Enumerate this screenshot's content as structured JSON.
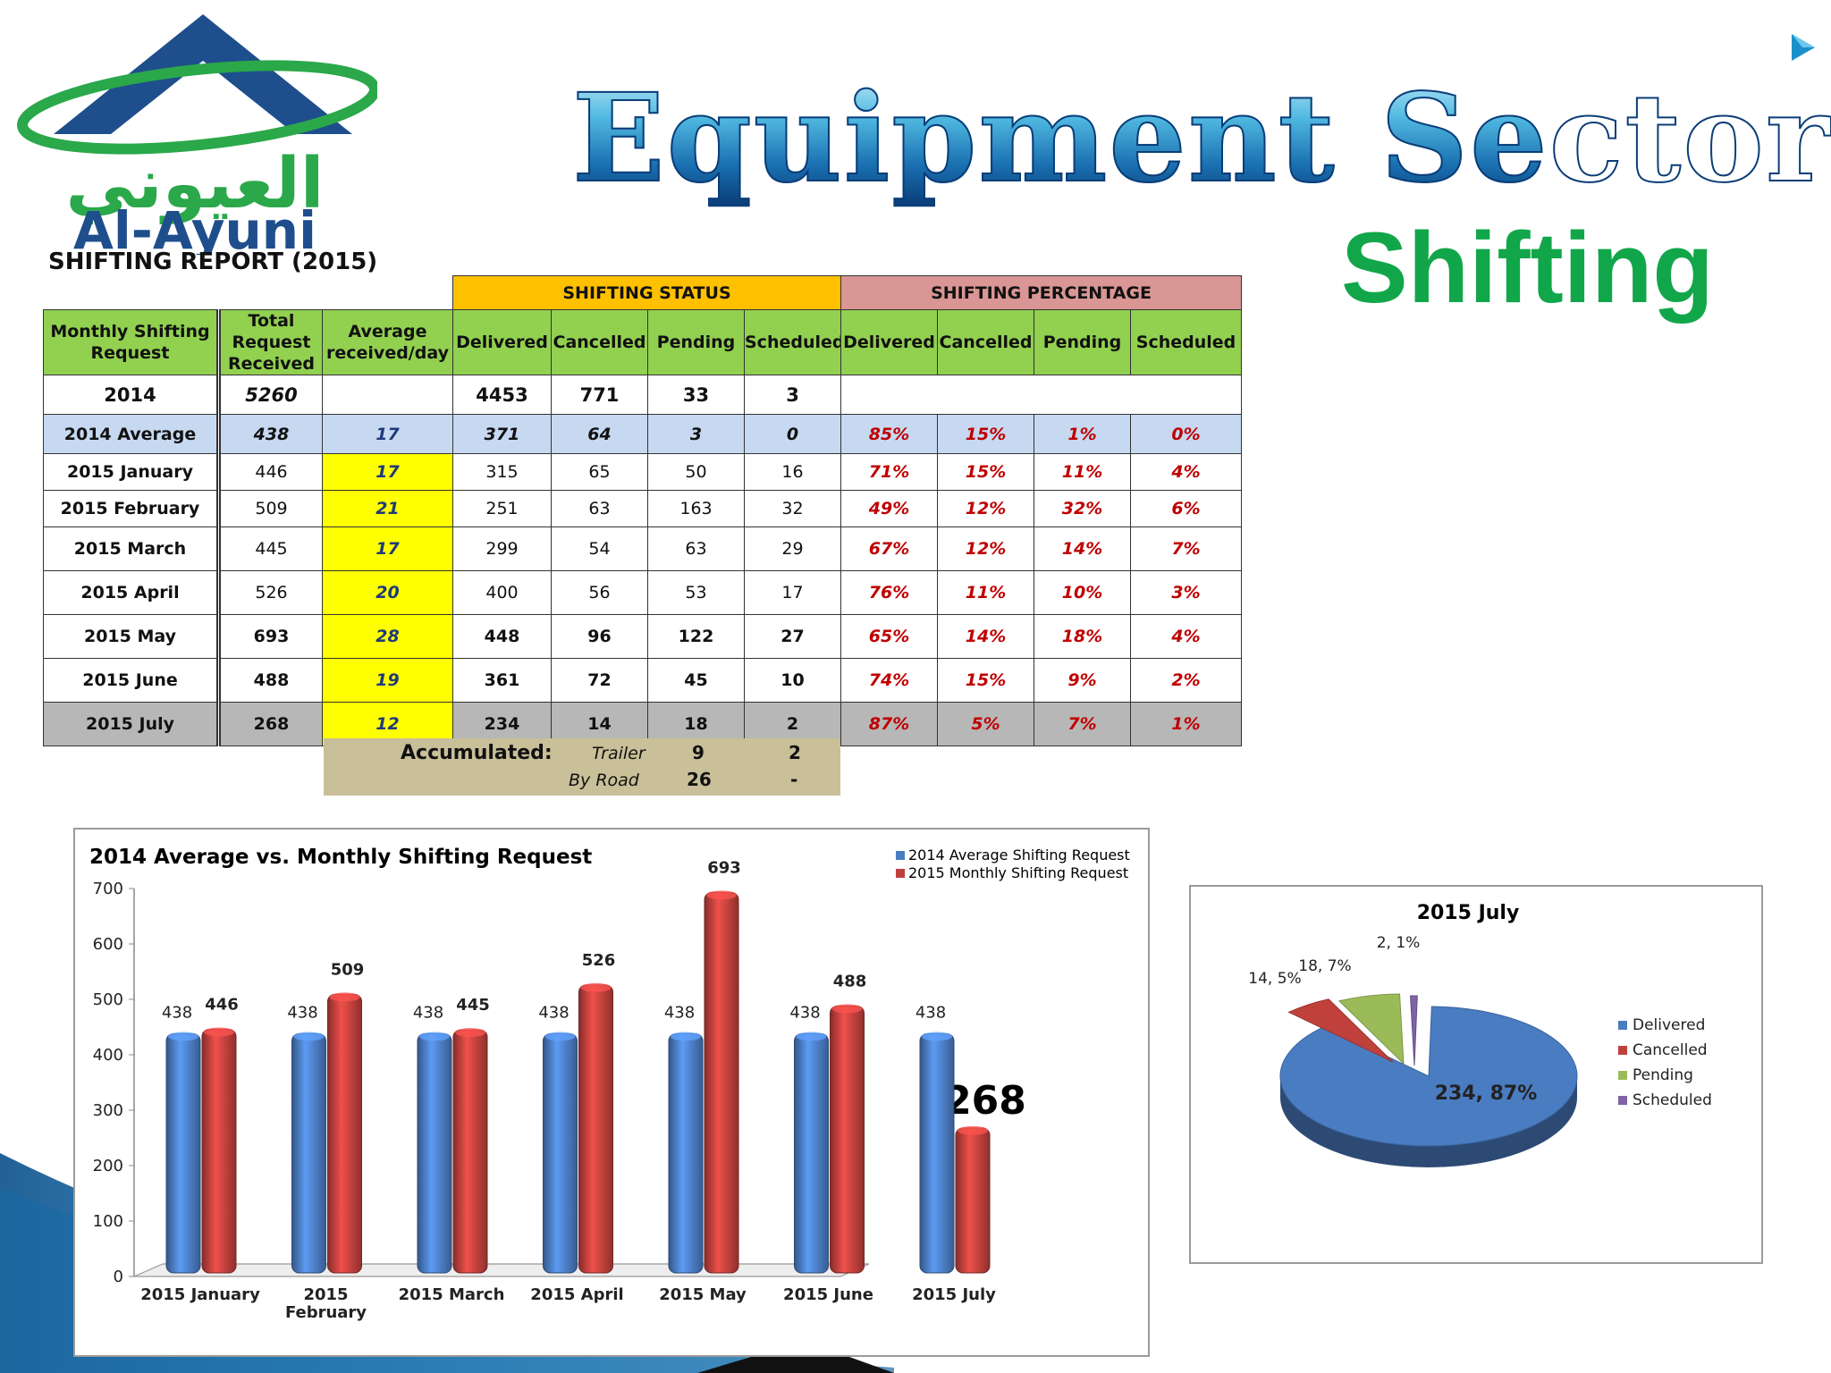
{
  "logo": {
    "arabic_text": "العيوني",
    "latin_text": "Al-Ayuni"
  },
  "title": "Equipment Sector",
  "subtitle": "Shifting",
  "report_title": "SHIFTING REPORT (2015)",
  "colors": {
    "header_green": "#92d050",
    "status_orange": "#ffc000",
    "percentage_rose": "#d99694",
    "avg_blue": "#c6d9f1",
    "highlight_yellow": "#ffff00",
    "july_gray": "#b7b7b7",
    "pct_red": "#c00000",
    "title_blue": "#1a6fb0",
    "subtitle_green": "#12a64a"
  },
  "table": {
    "group_headers": {
      "status": "SHIFTING STATUS",
      "percentage": "SHIFTING PERCENTAGE"
    },
    "col_headers": {
      "request": "Monthly Shifting Request",
      "total": "Total Request Received",
      "average": "Average received/day",
      "delivered": "Delivered",
      "cancelled": "Cancelled",
      "pending": "Pending",
      "scheduled": "Scheduled",
      "pct_delivered": "Delivered",
      "pct_cancelled": "Cancelled",
      "pct_pending": "Pending",
      "pct_scheduled": "Scheduled"
    },
    "rows": [
      {
        "label": "2014",
        "total": "5260",
        "avg": "",
        "delivered": "4453",
        "cancelled": "771",
        "pending": "33",
        "scheduled": "3",
        "pd": "",
        "pc": "",
        "pp": "",
        "ps": ""
      },
      {
        "label": "2014 Average",
        "total": "438",
        "avg": "17",
        "delivered": "371",
        "cancelled": "64",
        "pending": "3",
        "scheduled": "0",
        "pd": "85%",
        "pc": "15%",
        "pp": "1%",
        "ps": "0%"
      },
      {
        "label": "2015 January",
        "total": "446",
        "avg": "17",
        "delivered": "315",
        "cancelled": "65",
        "pending": "50",
        "scheduled": "16",
        "pd": "71%",
        "pc": "15%",
        "pp": "11%",
        "ps": "4%"
      },
      {
        "label": "2015 February",
        "total": "509",
        "avg": "21",
        "delivered": "251",
        "cancelled": "63",
        "pending": "163",
        "scheduled": "32",
        "pd": "49%",
        "pc": "12%",
        "pp": "32%",
        "ps": "6%"
      },
      {
        "label": "2015 March",
        "total": "445",
        "avg": "17",
        "delivered": "299",
        "cancelled": "54",
        "pending": "63",
        "scheduled": "29",
        "pd": "67%",
        "pc": "12%",
        "pp": "14%",
        "ps": "7%"
      },
      {
        "label": "2015 April",
        "total": "526",
        "avg": "20",
        "delivered": "400",
        "cancelled": "56",
        "pending": "53",
        "scheduled": "17",
        "pd": "76%",
        "pc": "11%",
        "pp": "10%",
        "ps": "3%"
      },
      {
        "label": "2015 May",
        "total": "693",
        "avg": "28",
        "delivered": "448",
        "cancelled": "96",
        "pending": "122",
        "scheduled": "27",
        "pd": "65%",
        "pc": "14%",
        "pp": "18%",
        "ps": "4%"
      },
      {
        "label": "2015 June",
        "total": "488",
        "avg": "19",
        "delivered": "361",
        "cancelled": "72",
        "pending": "45",
        "scheduled": "10",
        "pd": "74%",
        "pc": "15%",
        "pp": "9%",
        "ps": "2%"
      },
      {
        "label": "2015 July",
        "total": "268",
        "avg": "12",
        "delivered": "234",
        "cancelled": "14",
        "pending": "18",
        "scheduled": "2",
        "pd": "87%",
        "pc": "5%",
        "pp": "7%",
        "ps": "1%"
      }
    ],
    "accumulated": {
      "label": "Accumulated:",
      "trailer_label": "Trailer",
      "trailer_pending": "9",
      "trailer_scheduled": "2",
      "road_label": "By Road",
      "road_pending": "26",
      "road_scheduled": "-"
    }
  },
  "chart_data": [
    {
      "type": "bar",
      "title": "2014 Average vs. Monthly Shifting Request",
      "categories": [
        "2015 January",
        "2015 February",
        "2015 March",
        "2015 April",
        "2015 May",
        "2015 June",
        "2015 July"
      ],
      "series": [
        {
          "name": "2014 Average Shifting Request",
          "values": [
            438,
            438,
            438,
            438,
            438,
            438,
            438
          ],
          "color": "#4a7cc2"
        },
        {
          "name": "2015 Monthly Shifting Request",
          "values": [
            446,
            509,
            445,
            526,
            693,
            488,
            268
          ],
          "color": "#c0403c"
        }
      ],
      "ylim": [
        0,
        700
      ],
      "yticks": [
        0,
        100,
        200,
        300,
        400,
        500,
        600,
        700
      ],
      "grid": false,
      "legend": "top-right",
      "callout": "268"
    },
    {
      "type": "pie",
      "title": "2015 July",
      "slices": [
        {
          "label": "Delivered",
          "value": 234,
          "pct": "87%",
          "data_label": "234, 87%",
          "color": "#4a7cc2"
        },
        {
          "label": "Cancelled",
          "value": 14,
          "pct": "5%",
          "data_label": "14, 5%",
          "color": "#c0403c"
        },
        {
          "label": "Pending",
          "value": 18,
          "pct": "7%",
          "data_label": "18, 7%",
          "color": "#9bbb59"
        },
        {
          "label": "Scheduled",
          "value": 2,
          "pct": "1%",
          "data_label": "2, 1%",
          "color": "#7f62a8"
        }
      ],
      "legend": "right"
    }
  ]
}
